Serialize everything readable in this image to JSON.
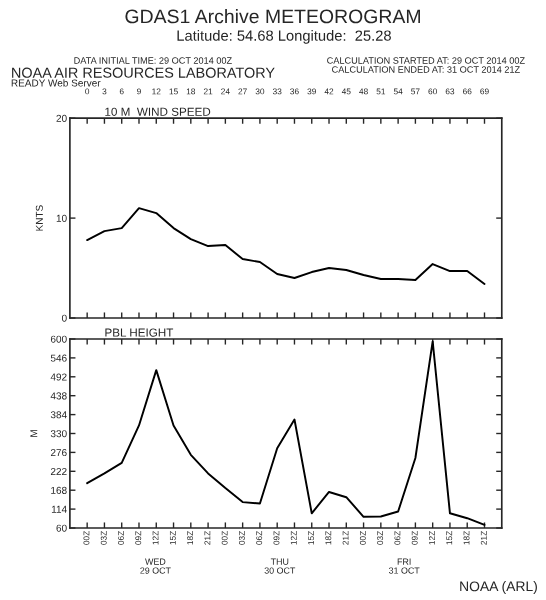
{
  "chart_data": [
    {
      "type": "line",
      "title": "10 M  WIND SPEED",
      "ylabel": "KNTS",
      "annotations": [
        "GDAS1 Archive METEOROGRAM",
        "Latitude: 54.68 Longitude:  25.28",
        "DATA INITIAL TIME: 29 OCT 2014 00Z",
        "CALCULATION STARTED AT: 29 OCT 2014 00Z",
        "CALCULATION ENDED AT: 31 OCT 2014 21Z",
        "NOAA AIR RESOURCES LABORATORY",
        "READY Web Server"
      ],
      "x": [
        0,
        3,
        6,
        9,
        12,
        15,
        18,
        21,
        24,
        27,
        30,
        33,
        36,
        39,
        42,
        45,
        48,
        51,
        54,
        57,
        60,
        63,
        66,
        69
      ],
      "series": [
        {
          "color": "#000000",
          "values": [
            7.8,
            8.7,
            9.0,
            11.0,
            10.5,
            9.0,
            7.9,
            7.2,
            7.3,
            5.9,
            5.6,
            4.4,
            4.0,
            4.6,
            5.0,
            4.8,
            4.3,
            3.9,
            3.9,
            3.8,
            5.4,
            4.7,
            4.7,
            3.4
          ]
        }
      ],
      "xlim": [
        -3,
        72
      ],
      "xticks": [
        0,
        3,
        6,
        9,
        12,
        15,
        18,
        21,
        24,
        27,
        30,
        33,
        36,
        39,
        42,
        45,
        48,
        51,
        54,
        57,
        60,
        63,
        66,
        69
      ],
      "ylim": [
        0,
        20
      ],
      "yticks": [
        0,
        10,
        20
      ],
      "grid": false,
      "legend": false,
      "marker": "none",
      "line_style": "solid"
    },
    {
      "type": "line",
      "title": "PBL HEIGHT",
      "ylabel": "M",
      "annotations": [
        "WED\n29 OCT",
        "THU\n30 OCT",
        "FRI\n31 OCT",
        "NOAA (ARL)"
      ],
      "x": [
        "2014-10-29T00:00",
        "2014-10-29T03:00",
        "2014-10-29T06:00",
        "2014-10-29T09:00",
        "2014-10-29T12:00",
        "2014-10-29T15:00",
        "2014-10-29T18:00",
        "2014-10-29T21:00",
        "2014-10-30T00:00",
        "2014-10-30T03:00",
        "2014-10-30T06:00",
        "2014-10-30T09:00",
        "2014-10-30T12:00",
        "2014-10-30T15:00",
        "2014-10-30T18:00",
        "2014-10-30T21:00",
        "2014-10-31T00:00",
        "2014-10-31T03:00",
        "2014-10-31T06:00",
        "2014-10-31T09:00",
        "2014-10-31T12:00",
        "2014-10-31T15:00",
        "2014-10-31T18:00",
        "2014-10-31T21:00"
      ],
      "series": [
        {
          "color": "#000000",
          "values": [
            188,
            216,
            246,
            353,
            511,
            353,
            269,
            216,
            174,
            134,
            130,
            288,
            370,
            102,
            163,
            148,
            92,
            93,
            107,
            260,
            593,
            102,
            88,
            69
          ]
        }
      ],
      "xlim": [
        "2014-10-28T21:00",
        "2014-11-01T00:00"
      ],
      "xticks": [
        {
          "value": "2014-10-29T00:00",
          "label": "00Z"
        },
        {
          "value": "2014-10-29T03:00",
          "label": "03Z"
        },
        {
          "value": "2014-10-29T06:00",
          "label": "06Z"
        },
        {
          "value": "2014-10-29T09:00",
          "label": "09Z"
        },
        {
          "value": "2014-10-29T12:00",
          "label": "12Z"
        },
        {
          "value": "2014-10-29T15:00",
          "label": "15Z"
        },
        {
          "value": "2014-10-29T18:00",
          "label": "18Z"
        },
        {
          "value": "2014-10-29T21:00",
          "label": "21Z"
        },
        {
          "value": "2014-10-30T00:00",
          "label": "00Z"
        },
        {
          "value": "2014-10-30T03:00",
          "label": "03Z"
        },
        {
          "value": "2014-10-30T06:00",
          "label": "06Z"
        },
        {
          "value": "2014-10-30T09:00",
          "label": "09Z"
        },
        {
          "value": "2014-10-30T12:00",
          "label": "12Z"
        },
        {
          "value": "2014-10-30T15:00",
          "label": "15Z"
        },
        {
          "value": "2014-10-30T18:00",
          "label": "18Z"
        },
        {
          "value": "2014-10-30T21:00",
          "label": "21Z"
        },
        {
          "value": "2014-10-31T00:00",
          "label": "00Z"
        },
        {
          "value": "2014-10-31T03:00",
          "label": "03Z"
        },
        {
          "value": "2014-10-31T06:00",
          "label": "06Z"
        },
        {
          "value": "2014-10-31T09:00",
          "label": "09Z"
        },
        {
          "value": "2014-10-31T12:00",
          "label": "12Z"
        },
        {
          "value": "2014-10-31T15:00",
          "label": "15Z"
        },
        {
          "value": "2014-10-31T18:00",
          "label": "18Z"
        },
        {
          "value": "2014-10-31T21:00",
          "label": "21Z"
        }
      ],
      "ylim": [
        60,
        600
      ],
      "yticks": [
        60,
        114,
        168,
        222,
        276,
        330,
        384,
        438,
        492,
        546,
        600
      ],
      "grid": false,
      "legend": false,
      "marker": "none",
      "line_style": "solid"
    }
  ]
}
